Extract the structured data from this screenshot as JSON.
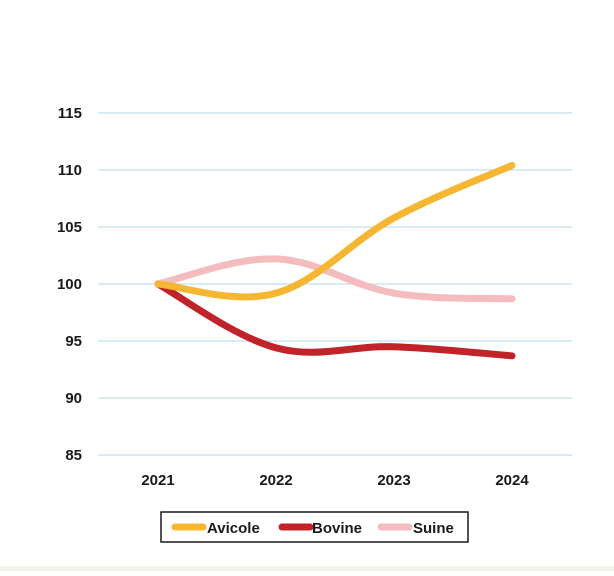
{
  "chart_data": {
    "type": "line",
    "categories": [
      "2021",
      "2022",
      "2023",
      "2024"
    ],
    "series": [
      {
        "name": "Avicole",
        "color": "#f5b731",
        "values": [
          100,
          99.2,
          105.8,
          110.4
        ]
      },
      {
        "name": "Bovine",
        "color": "#c0242a",
        "values": [
          100,
          94.4,
          94.5,
          93.7
        ]
      },
      {
        "name": "Suine",
        "color": "#f4bcbf",
        "values": [
          100,
          102.2,
          99.2,
          98.7
        ]
      }
    ],
    "ylim": [
      85,
      115
    ],
    "yticks": [
      "85",
      "90",
      "95",
      "100",
      "105",
      "110",
      "115"
    ],
    "grid": true,
    "legend": "bottom",
    "title": "",
    "xlabel": "",
    "ylabel": ""
  }
}
